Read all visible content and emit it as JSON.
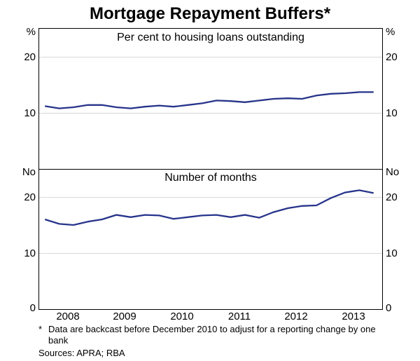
{
  "title": "Mortgage Repayment Buffers*",
  "footnote_marker": "*",
  "footnote_text": "Data are backcast before December 2010 to adjust for a reporting change by one bank",
  "sources_label": "Sources:",
  "sources_value": "APRA; RBA",
  "background_color": "#ffffff",
  "axis_color": "#000000",
  "grid_color": "#d8d8d8",
  "line_color": "#27348b",
  "line_width": 2.3,
  "title_fontsize": 24,
  "subtitle_fontsize": 16,
  "tick_fontsize": 15,
  "footnote_fontsize": 13,
  "x_domain": [
    2007.5,
    2013.5
  ],
  "x_ticks": [
    2008,
    2009,
    2010,
    2011,
    2012,
    2013
  ],
  "panels": {
    "top": {
      "subtitle": "Per cent to housing loans outstanding",
      "unit_left": "%",
      "unit_right": "%",
      "y_domain": [
        0,
        25
      ],
      "y_ticks": [
        10,
        20
      ],
      "series": [
        {
          "x": 2007.6,
          "y": 11.2
        },
        {
          "x": 2007.85,
          "y": 10.8
        },
        {
          "x": 2008.1,
          "y": 11.0
        },
        {
          "x": 2008.35,
          "y": 11.4
        },
        {
          "x": 2008.6,
          "y": 11.4
        },
        {
          "x": 2008.85,
          "y": 11.0
        },
        {
          "x": 2009.1,
          "y": 10.8
        },
        {
          "x": 2009.35,
          "y": 11.1
        },
        {
          "x": 2009.6,
          "y": 11.3
        },
        {
          "x": 2009.85,
          "y": 11.1
        },
        {
          "x": 2010.1,
          "y": 11.4
        },
        {
          "x": 2010.35,
          "y": 11.7
        },
        {
          "x": 2010.6,
          "y": 12.2
        },
        {
          "x": 2010.85,
          "y": 12.1
        },
        {
          "x": 2011.1,
          "y": 11.9
        },
        {
          "x": 2011.35,
          "y": 12.2
        },
        {
          "x": 2011.6,
          "y": 12.5
        },
        {
          "x": 2011.85,
          "y": 12.6
        },
        {
          "x": 2012.1,
          "y": 12.5
        },
        {
          "x": 2012.35,
          "y": 13.1
        },
        {
          "x": 2012.6,
          "y": 13.4
        },
        {
          "x": 2012.85,
          "y": 13.5
        },
        {
          "x": 2013.1,
          "y": 13.7
        },
        {
          "x": 2013.35,
          "y": 13.7
        }
      ]
    },
    "bottom": {
      "subtitle": "Number of months",
      "unit_left": "No",
      "unit_right": "No",
      "y_domain": [
        0,
        25
      ],
      "y_ticks": [
        10,
        20
      ],
      "series": [
        {
          "x": 2007.6,
          "y": 16.0
        },
        {
          "x": 2007.85,
          "y": 15.2
        },
        {
          "x": 2008.1,
          "y": 15.0
        },
        {
          "x": 2008.35,
          "y": 15.6
        },
        {
          "x": 2008.6,
          "y": 16.0
        },
        {
          "x": 2008.85,
          "y": 16.8
        },
        {
          "x": 2009.1,
          "y": 16.4
        },
        {
          "x": 2009.35,
          "y": 16.8
        },
        {
          "x": 2009.6,
          "y": 16.7
        },
        {
          "x": 2009.85,
          "y": 16.1
        },
        {
          "x": 2010.1,
          "y": 16.4
        },
        {
          "x": 2010.35,
          "y": 16.7
        },
        {
          "x": 2010.6,
          "y": 16.8
        },
        {
          "x": 2010.85,
          "y": 16.4
        },
        {
          "x": 2011.1,
          "y": 16.8
        },
        {
          "x": 2011.35,
          "y": 16.3
        },
        {
          "x": 2011.6,
          "y": 17.3
        },
        {
          "x": 2011.85,
          "y": 18.0
        },
        {
          "x": 2012.1,
          "y": 18.4
        },
        {
          "x": 2012.35,
          "y": 18.5
        },
        {
          "x": 2012.6,
          "y": 19.8
        },
        {
          "x": 2012.85,
          "y": 20.8
        },
        {
          "x": 2013.1,
          "y": 21.2
        },
        {
          "x": 2013.35,
          "y": 20.7
        }
      ]
    }
  }
}
